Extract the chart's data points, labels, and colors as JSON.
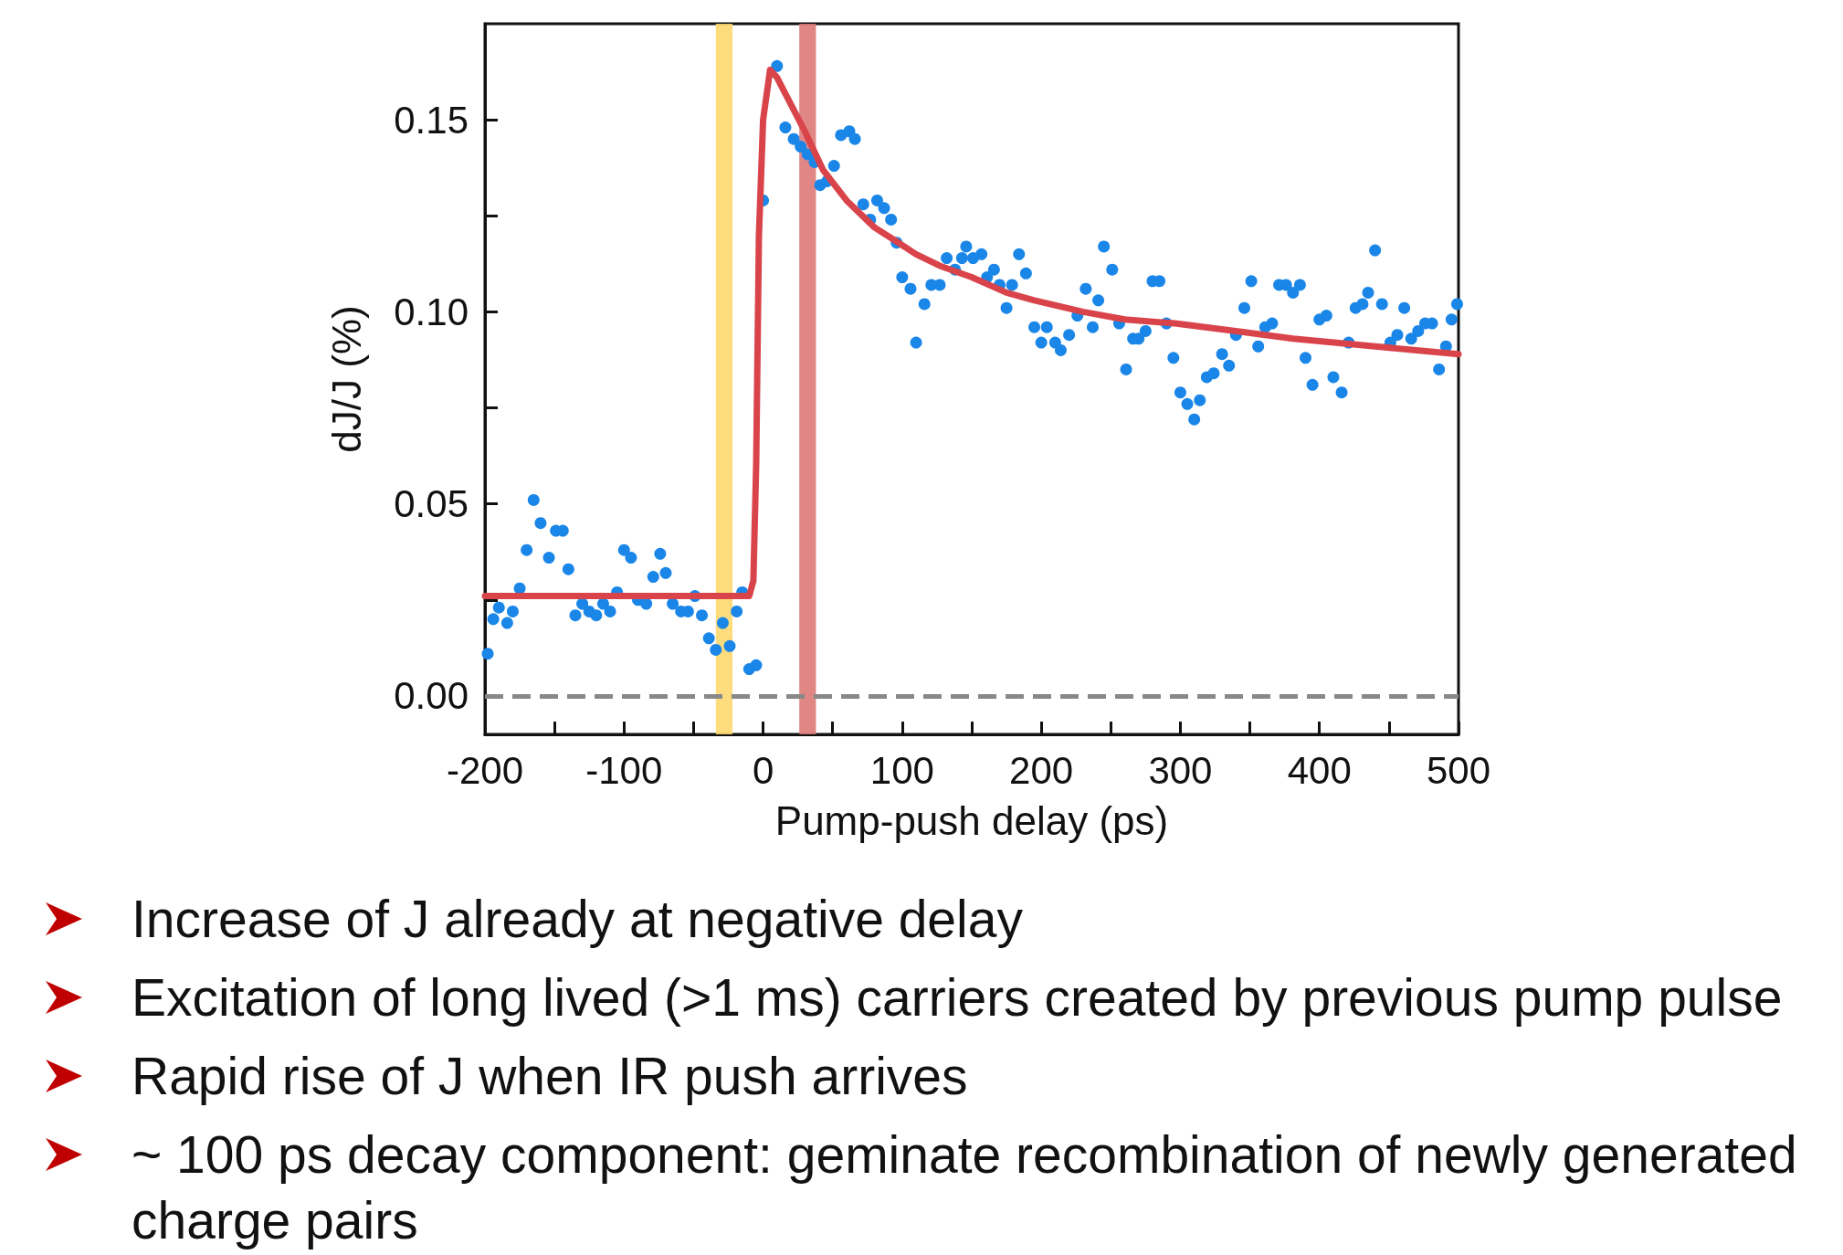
{
  "chart_data": {
    "type": "scatter",
    "xlabel": "Pump-push delay (ps)",
    "ylabel": "dJ/J (%)",
    "xlim": [
      -200,
      500
    ],
    "xticks": [
      -200,
      {
        "value": -150,
        "label": null
      },
      -100,
      {
        "value": -50,
        "label": null
      },
      0,
      {
        "value": 50,
        "label": null
      },
      100,
      {
        "value": 150,
        "label": null
      },
      200,
      {
        "value": 250,
        "label": null
      },
      300,
      {
        "value": 350,
        "label": null
      },
      400,
      {
        "value": 450,
        "label": null
      },
      500
    ],
    "ylim": [
      -0.01,
      0.175
    ],
    "yticks": [
      {
        "value": 0,
        "label": "0.00"
      },
      {
        "value": 0.025,
        "label": null
      },
      {
        "value": 0.05,
        "label": "0.05"
      },
      {
        "value": 0.075,
        "label": null
      },
      {
        "value": 0.1,
        "label": "0.10"
      },
      {
        "value": 0.125,
        "label": null
      },
      {
        "value": 0.15,
        "label": "0.15"
      }
    ],
    "grid": false,
    "marker": "circle",
    "series": [
      {
        "color": "#1a86e8",
        "x": [
          -198,
          -194,
          -190,
          -184,
          -180,
          -175,
          -170,
          -165,
          -160,
          -154,
          -149,
          -144,
          -140,
          -135,
          -130,
          -125,
          -120,
          -115,
          -110,
          -105,
          -100,
          -95,
          -90,
          -84,
          -79,
          -74,
          -70,
          -65,
          -59,
          -54,
          -49,
          -44,
          -39,
          -34,
          -29,
          -24,
          -19,
          -15,
          -10,
          -5,
          0,
          10,
          16,
          22,
          27,
          32,
          37,
          41,
          46,
          51,
          56,
          62,
          66,
          72,
          77,
          82,
          87,
          92,
          96,
          100,
          106,
          110,
          116,
          121,
          127,
          132,
          138,
          143,
          146,
          151,
          157,
          161,
          166,
          170,
          175,
          179,
          184,
          189,
          195,
          200,
          204,
          210,
          214,
          220,
          226,
          232,
          237,
          241,
          245,
          251,
          256,
          261,
          266,
          270,
          275,
          280,
          285,
          290,
          295,
          300,
          305,
          310,
          314,
          319,
          324,
          330,
          335,
          340,
          346,
          351,
          356,
          361,
          366,
          371,
          376,
          381,
          386,
          390,
          395,
          400,
          405,
          410,
          416,
          421,
          426,
          431,
          435,
          440,
          445,
          451,
          456,
          461,
          466,
          471,
          476,
          481,
          486,
          491,
          495,
          499
        ],
        "values": [
          0.011,
          0.02,
          0.023,
          0.019,
          0.022,
          0.028,
          0.038,
          0.051,
          0.045,
          0.036,
          0.043,
          0.043,
          0.033,
          0.021,
          0.024,
          0.022,
          0.021,
          0.024,
          0.022,
          0.027,
          0.038,
          0.036,
          0.025,
          0.024,
          0.031,
          0.037,
          0.032,
          0.024,
          0.022,
          0.022,
          0.026,
          0.021,
          0.015,
          0.012,
          0.019,
          0.013,
          0.022,
          0.027,
          0.007,
          0.008,
          0.129,
          0.164,
          0.148,
          0.145,
          0.143,
          0.141,
          0.139,
          0.133,
          0.134,
          0.138,
          0.146,
          0.147,
          0.145,
          0.128,
          0.124,
          0.129,
          0.127,
          0.124,
          0.118,
          0.109,
          0.106,
          0.092,
          0.102,
          0.107,
          0.107,
          0.114,
          0.111,
          0.114,
          0.117,
          0.114,
          0.115,
          0.109,
          0.111,
          0.107,
          0.101,
          0.107,
          0.115,
          0.11,
          0.096,
          0.092,
          0.096,
          0.092,
          0.09,
          0.094,
          0.099,
          0.106,
          0.096,
          0.103,
          0.117,
          0.111,
          0.097,
          0.085,
          0.093,
          0.093,
          0.095,
          0.108,
          0.108,
          0.097,
          0.088,
          0.079,
          0.076,
          0.072,
          0.077,
          0.083,
          0.084,
          0.089,
          0.086,
          0.094,
          0.101,
          0.108,
          0.091,
          0.096,
          0.097,
          0.107,
          0.107,
          0.105,
          0.107,
          0.088,
          0.081,
          0.098,
          0.099,
          0.083,
          0.079,
          0.092,
          0.101,
          0.102,
          0.105,
          0.116,
          0.102,
          0.092,
          0.094,
          0.101,
          0.093,
          0.095,
          0.097,
          0.097,
          0.085,
          0.091,
          0.098,
          0.102
        ]
      },
      {
        "type": "line",
        "color": "#d9444b",
        "marker": "none",
        "line_style": "solid",
        "x": [
          -200,
          -10,
          -7,
          -5,
          -3,
          0,
          5,
          10,
          20,
          30,
          43,
          60,
          80,
          93,
          110,
          127,
          150,
          175,
          195,
          230,
          260,
          296,
          340,
          381,
          440,
          500
        ],
        "values": [
          0.026,
          0.026,
          0.03,
          0.06,
          0.12,
          0.15,
          0.163,
          0.161,
          0.154,
          0.147,
          0.137,
          0.129,
          0.122,
          0.119,
          0.115,
          0.112,
          0.109,
          0.105,
          0.103,
          0.1,
          0.098,
          0.097,
          0.095,
          0.093,
          0.091,
          0.089
        ]
      }
    ],
    "bands": [
      {
        "axis": "x",
        "from": -34,
        "to": -22,
        "color": "#fdd86f"
      },
      {
        "axis": "x",
        "from": 26,
        "to": 38,
        "color": "#dd7a78"
      }
    ],
    "ref_lines": [
      {
        "axis": "y",
        "value": 0,
        "color": "#888888",
        "line_style": "dashed"
      }
    ],
    "annotations": [
      "Increase of J already at negative delay",
      "Excitation of long lived (>1 ms) carriers created by previous pump pulse",
      "Rapid rise of J when IR push arrives",
      "~ 100 ps decay component: geminate recombination of newly generated charge pairs"
    ]
  }
}
